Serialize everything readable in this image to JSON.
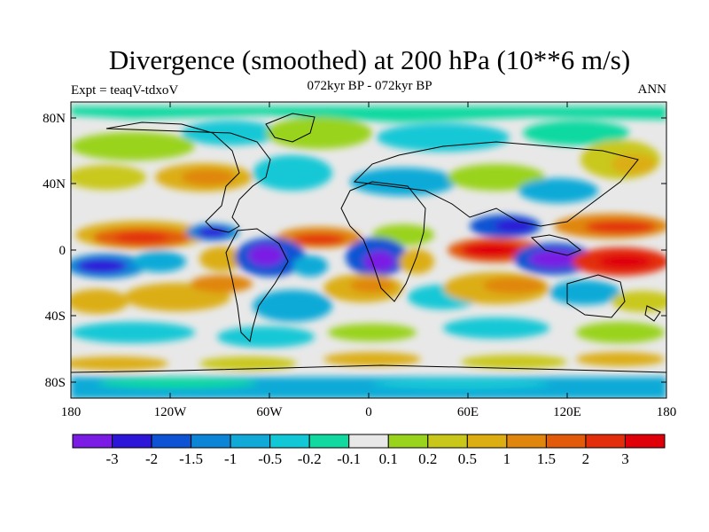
{
  "title": "Divergence (smoothed) at 200 hPa (10**6 m/s)",
  "subtitle": "072kyr BP - 072kyr BP",
  "expt_label": "Expt = teaqV-tdxoV",
  "season": "ANN",
  "lat_ticks": [
    "80N",
    "40N",
    "0",
    "40S",
    "80S"
  ],
  "lon_ticks": [
    "180",
    "120W",
    "60W",
    "0",
    "60E",
    "120E",
    "180"
  ],
  "colorbar": {
    "colors": [
      "#7a1ce4",
      "#2d16d8",
      "#0d53d3",
      "#0c85d6",
      "#11aad8",
      "#12c8d6",
      "#11d9a0",
      "#e8e8e8",
      "#9ad31b",
      "#c9c81a",
      "#dcae12",
      "#e0860c",
      "#e25b0a",
      "#e32d0b",
      "#e0000a"
    ],
    "labels": [
      "-3",
      "-2",
      "-1.5",
      "-1",
      "-0.5",
      "-0.2",
      "-0.1",
      "0.1",
      "0.2",
      "0.5",
      "1",
      "1.5",
      "2",
      "3"
    ]
  }
}
